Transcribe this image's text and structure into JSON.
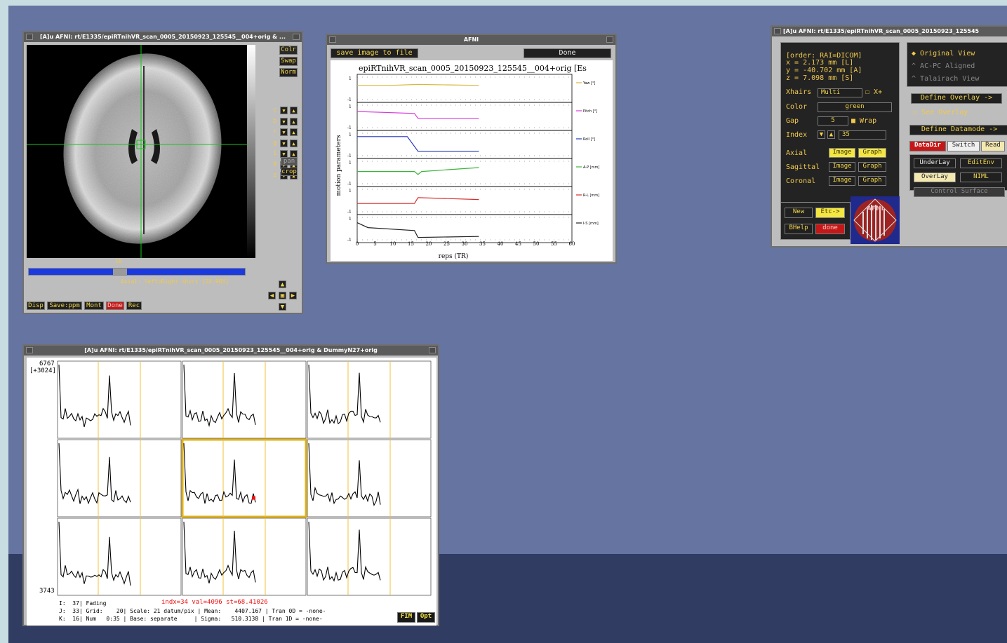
{
  "image_viewer": {
    "title": "[A]u AFNI: rt/E1335/epiRTnihVR_scan_0005_20150923_125545__004+orig & ...",
    "side_buttons": [
      "Colr",
      "Swap",
      "Norm"
    ],
    "letter_rows": [
      "c",
      "b",
      "r",
      "g",
      "i",
      "9",
      "z"
    ],
    "extra_buttons": [
      "pan",
      "crop"
    ],
    "slider_value": "16",
    "status": "Axial: left=Right short [2X-98X]",
    "bottom_buttons": [
      "Disp",
      "Save:ppm",
      "Mont",
      "Done",
      "Rec"
    ]
  },
  "motion_window": {
    "title": "AFNI",
    "save_label": "save image to file",
    "done_label": "Done",
    "plot_title": "epiRTnihVR_scan_0005_20150923_125545__004+orig [Es",
    "ylabel": "motion parameters",
    "xlabel": "reps (TR)",
    "x_ticks": [
      "0",
      "5",
      "10",
      "15",
      "20",
      "25",
      "30",
      "35",
      "40",
      "45",
      "50",
      "55",
      "60"
    ],
    "y_ticks": [
      "1",
      "-1",
      "1",
      "-1",
      "1",
      "-1",
      "1",
      "-1",
      "1",
      "-1",
      "1",
      "-1"
    ],
    "series_legend": [
      "Yaw [°]",
      "Pitch [°]",
      "Roll [°]",
      "A-P [mm]",
      "R-L [mm]",
      "I-S [mm]"
    ],
    "colors": [
      "#d9b73a",
      "#d63adb",
      "#2434b8",
      "#3cb43c",
      "#d62b2b",
      "#222222"
    ]
  },
  "controller": {
    "title": "[A]u AFNI: rt/E1335/epiRTnihVR_scan_0005_20150923_125545",
    "coords": [
      "[order: RAI=DICOM]",
      "x =     2.173 mm [L]",
      "y =   -40.702 mm [A]",
      "z =     7.098 mm [S]"
    ],
    "xhairs_label": "Xhairs",
    "xhairs_value": "Multi",
    "xplus_label": "X+",
    "color_label": "Color",
    "color_value": "green",
    "gap_label": "Gap",
    "gap_value": "5",
    "wrap_label": "Wrap",
    "index_label": "Index",
    "index_value": "35",
    "views": [
      {
        "label": "Axial",
        "image": "Image",
        "graph": "Graph"
      },
      {
        "label": "Sagittal",
        "image": "Image",
        "graph": "Graph"
      },
      {
        "label": "Coronal",
        "image": "Image",
        "graph": "Graph"
      }
    ],
    "new_label": "New",
    "etc_label": "Etc->",
    "bhelp_label": "BHelp",
    "done_label": "done",
    "logo_text": "AFNI",
    "radio": [
      "Original View",
      "AC-PC Aligned",
      "Talairach View"
    ],
    "define_overlay": "Define Overlay ->",
    "see_overlay": "See Overlay",
    "define_datamode": "Define Datamode ->",
    "datadir": "DataDir",
    "switch": "Switch",
    "read": "Read",
    "underlay": "UnderLay",
    "editenv": "EditEnv",
    "overlay": "OverLay",
    "niml": "NIML",
    "control_surface": "Control Surface"
  },
  "graph_window": {
    "title": "[A]u AFNI: rt/E1335/epiRTnihVR_scan_0005_20150923_125545__004+orig & DummyN27+orig",
    "top_value": "6767",
    "top_range": "[+3024]",
    "bottom_value": "3743",
    "info_red": "indx=34 val=4096 st=68.41026",
    "info_lines": [
      "I:  37| Fading",
      "J:  33| Grid:    20| Scale: 21 datum/pix | Mean:    4407.167 | Tran 0D = -none-",
      "K:  16| Num   0:35 | Base: separate     | Sigma:   510.3138 | Tran 1D = -none-"
    ],
    "fim_label": "FIM",
    "opt_label": "Opt"
  }
}
